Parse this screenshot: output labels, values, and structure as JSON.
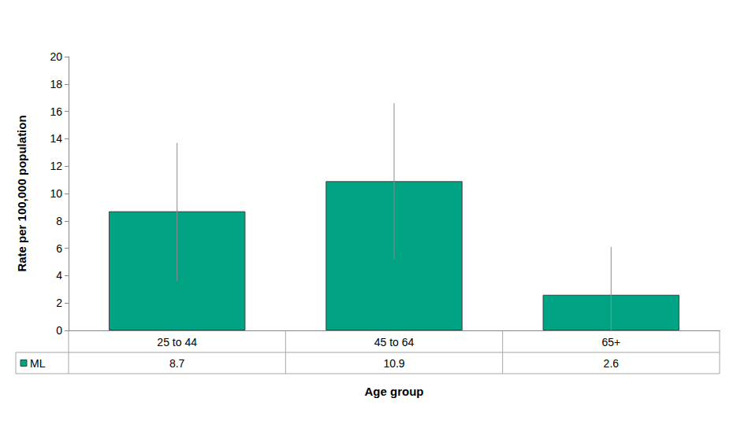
{
  "chart_data": {
    "type": "bar",
    "categories": [
      "25 to 44",
      "45 to 64",
      "65+"
    ],
    "series": [
      {
        "name": "ML",
        "color": "#00a383",
        "values": [
          8.7,
          10.9,
          2.6
        ],
        "error_low": [
          3.6,
          5.2,
          0
        ],
        "error_high": [
          13.7,
          16.6,
          6.1
        ]
      }
    ],
    "x_label": "Age group",
    "y_label": "Rate per 100,000 population",
    "ylim": [
      0,
      20
    ],
    "yticks": [
      0,
      2,
      4,
      6,
      8,
      10,
      12,
      14,
      16,
      18,
      20
    ],
    "grid": false,
    "data_labels": true
  }
}
